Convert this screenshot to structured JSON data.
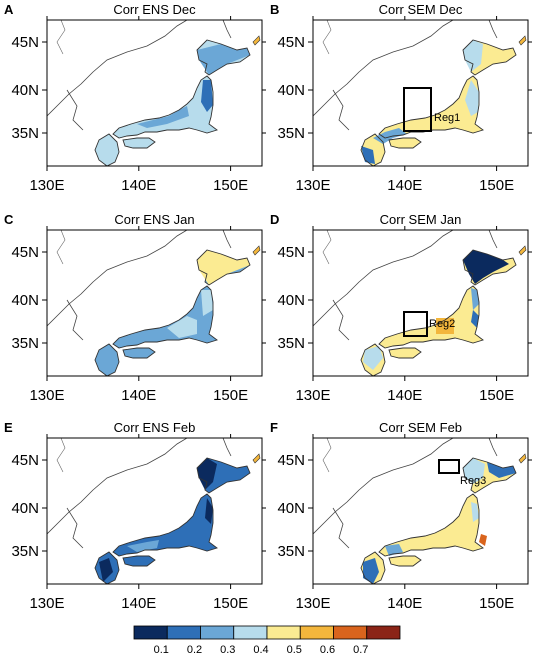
{
  "figure": {
    "lon_ticks": [
      "130E",
      "140E",
      "150E"
    ],
    "lat_ticks": [
      "45N",
      "40N",
      "35N"
    ],
    "colorbar": {
      "labels": [
        "0.1",
        "0.2",
        "0.3",
        "0.4",
        "0.5",
        "0.6",
        "0.7"
      ],
      "colors": [
        "#0b2a5e",
        "#2e6fb7",
        "#6ba7d6",
        "#b7dcec",
        "#fbeb92",
        "#f3b63c",
        "#d9641d",
        "#8b2417"
      ]
    },
    "panels": [
      {
        "letter": "A",
        "title": "Corr ENS Dec"
      },
      {
        "letter": "B",
        "title": "Corr SEM Dec",
        "region_label": "Reg1"
      },
      {
        "letter": "C",
        "title": "Corr ENS Jan"
      },
      {
        "letter": "D",
        "title": "Corr SEM Jan",
        "region_label": "Reg2"
      },
      {
        "letter": "E",
        "title": "Corr ENS Feb"
      },
      {
        "letter": "F",
        "title": "Corr SEM Feb",
        "region_label": "Reg3"
      }
    ]
  }
}
